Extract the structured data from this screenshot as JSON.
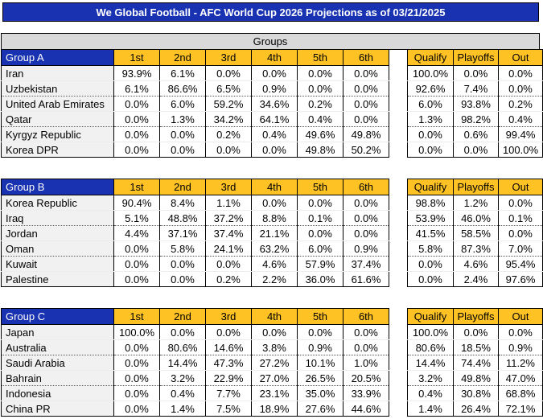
{
  "title": "We Global Football - AFC World Cup 2026 Projections as of 03/21/2025",
  "section_header": "Groups",
  "colors": {
    "header_blue": "#1832B2",
    "header_gold": "#FFC224",
    "section_gray": "#D9D9D9",
    "team_column_bg": "#F1F1F1"
  },
  "position_headers": [
    "1st",
    "2nd",
    "3rd",
    "4th",
    "5th",
    "6th"
  ],
  "outcome_headers": [
    "Qualify",
    "Playoffs",
    "Out"
  ],
  "groups": [
    {
      "name": "Group A",
      "teams": [
        {
          "team": "Iran",
          "positions": [
            "93.9%",
            "6.1%",
            "0.0%",
            "0.0%",
            "0.0%",
            "0.0%"
          ],
          "outcomes": [
            "100.0%",
            "0.0%",
            "0.0%"
          ]
        },
        {
          "team": "Uzbekistan",
          "positions": [
            "6.1%",
            "86.6%",
            "6.5%",
            "0.9%",
            "0.0%",
            "0.0%"
          ],
          "outcomes": [
            "92.6%",
            "7.4%",
            "0.0%"
          ]
        },
        {
          "team": "United Arab Emirates",
          "positions": [
            "0.0%",
            "6.0%",
            "59.2%",
            "34.6%",
            "0.2%",
            "0.0%"
          ],
          "outcomes": [
            "6.0%",
            "93.8%",
            "0.2%"
          ]
        },
        {
          "team": "Qatar",
          "positions": [
            "0.0%",
            "1.3%",
            "34.2%",
            "64.1%",
            "0.4%",
            "0.0%"
          ],
          "outcomes": [
            "1.3%",
            "98.2%",
            "0.4%"
          ]
        },
        {
          "team": "Kyrgyz Republic",
          "positions": [
            "0.0%",
            "0.0%",
            "0.2%",
            "0.4%",
            "49.6%",
            "49.8%"
          ],
          "outcomes": [
            "0.0%",
            "0.6%",
            "99.4%"
          ]
        },
        {
          "team": "Korea DPR",
          "positions": [
            "0.0%",
            "0.0%",
            "0.0%",
            "0.0%",
            "49.8%",
            "50.2%"
          ],
          "outcomes": [
            "0.0%",
            "0.0%",
            "100.0%"
          ]
        }
      ]
    },
    {
      "name": "Group B",
      "teams": [
        {
          "team": "Korea Republic",
          "positions": [
            "90.4%",
            "8.4%",
            "1.1%",
            "0.0%",
            "0.0%",
            "0.0%"
          ],
          "outcomes": [
            "98.8%",
            "1.2%",
            "0.0%"
          ]
        },
        {
          "team": "Iraq",
          "positions": [
            "5.1%",
            "48.8%",
            "37.2%",
            "8.8%",
            "0.1%",
            "0.0%"
          ],
          "outcomes": [
            "53.9%",
            "46.0%",
            "0.1%"
          ]
        },
        {
          "team": "Jordan",
          "positions": [
            "4.4%",
            "37.1%",
            "37.4%",
            "21.1%",
            "0.0%",
            "0.0%"
          ],
          "outcomes": [
            "41.5%",
            "58.5%",
            "0.0%"
          ]
        },
        {
          "team": "Oman",
          "positions": [
            "0.0%",
            "5.8%",
            "24.1%",
            "63.2%",
            "6.0%",
            "0.9%"
          ],
          "outcomes": [
            "5.8%",
            "87.3%",
            "7.0%"
          ]
        },
        {
          "team": "Kuwait",
          "positions": [
            "0.0%",
            "0.0%",
            "0.0%",
            "4.6%",
            "57.9%",
            "37.4%"
          ],
          "outcomes": [
            "0.0%",
            "4.6%",
            "95.4%"
          ]
        },
        {
          "team": "Palestine",
          "positions": [
            "0.0%",
            "0.0%",
            "0.2%",
            "2.2%",
            "36.0%",
            "61.6%"
          ],
          "outcomes": [
            "0.0%",
            "2.4%",
            "97.6%"
          ]
        }
      ]
    },
    {
      "name": "Group C",
      "teams": [
        {
          "team": "Japan",
          "positions": [
            "100.0%",
            "0.0%",
            "0.0%",
            "0.0%",
            "0.0%",
            "0.0%"
          ],
          "outcomes": [
            "100.0%",
            "0.0%",
            "0.0%"
          ]
        },
        {
          "team": "Australia",
          "positions": [
            "0.0%",
            "80.6%",
            "14.6%",
            "3.8%",
            "0.9%",
            "0.0%"
          ],
          "outcomes": [
            "80.6%",
            "18.5%",
            "0.9%"
          ]
        },
        {
          "team": "Saudi Arabia",
          "positions": [
            "0.0%",
            "14.4%",
            "47.3%",
            "27.2%",
            "10.1%",
            "1.0%"
          ],
          "outcomes": [
            "14.4%",
            "74.4%",
            "11.2%"
          ]
        },
        {
          "team": "Bahrain",
          "positions": [
            "0.0%",
            "3.2%",
            "22.9%",
            "27.0%",
            "26.5%",
            "20.5%"
          ],
          "outcomes": [
            "3.2%",
            "49.8%",
            "47.0%"
          ]
        },
        {
          "team": "Indonesia",
          "positions": [
            "0.0%",
            "0.4%",
            "7.7%",
            "23.1%",
            "35.0%",
            "33.9%"
          ],
          "outcomes": [
            "0.4%",
            "30.8%",
            "68.8%"
          ]
        },
        {
          "team": "China PR",
          "positions": [
            "0.0%",
            "1.4%",
            "7.5%",
            "18.9%",
            "27.6%",
            "44.6%"
          ],
          "outcomes": [
            "1.4%",
            "26.4%",
            "72.1%"
          ]
        }
      ]
    }
  ]
}
